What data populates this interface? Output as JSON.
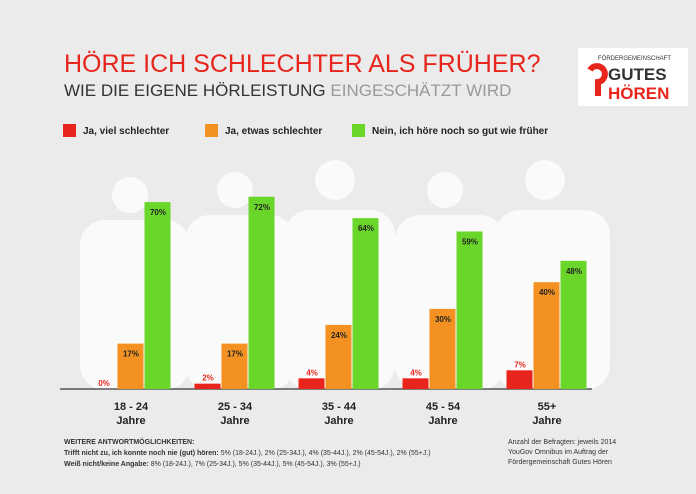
{
  "chart_data": {
    "type": "bar",
    "title": "HÖRE ICH SCHLECHTER ALS FRÜHER?",
    "subtitle_parts": [
      "WIE DIE EIGENE HÖRLEISTUNG",
      "EINGESCHÄTZT WIRD"
    ],
    "categories": [
      "18 - 24 Jahre",
      "25 - 34 Jahre",
      "35 - 44 Jahre",
      "45 - 54 Jahre",
      "55+ Jahre"
    ],
    "series": [
      {
        "name": "Ja, viel schlechter",
        "color": "#e8251c",
        "values": [
          0,
          2,
          4,
          4,
          7
        ],
        "value_labels": [
          "0%",
          "2%",
          "4%",
          "4%",
          "7%"
        ]
      },
      {
        "name": "Ja, etwas schlechter",
        "color": "#f39223",
        "values": [
          17,
          17,
          24,
          30,
          40
        ],
        "value_labels": [
          "17%",
          "17%",
          "24%",
          "30%",
          "40%"
        ]
      },
      {
        "name": "Nein, ich höre noch so gut wie früher",
        "color": "#6ad62a",
        "values": [
          70,
          72,
          64,
          59,
          48
        ],
        "value_labels": [
          "70%",
          "72%",
          "64%",
          "59%",
          "48%"
        ]
      }
    ]
  },
  "logo": {
    "line1": "FÖRDERGEMEINSCHAFT",
    "line2": "GUTES",
    "line3": "HÖREN"
  },
  "footnotes": {
    "heading": "WEITERE ANTWORTMÖGLICHKEITEN:",
    "rows": [
      {
        "label": "Trifft nicht zu, ich konnte noch nie (gut) hören:",
        "text": "5% (18-24J.), 2% (25-34J.), 4% (35-44J.), 2% (45-54J.), 2% (55+J.)"
      },
      {
        "label": "Weiß nicht/keine Angabe:",
        "text": "8% (18-24J.), 7% (25-34J.), 5% (35-44J.), 5% (45-54J.), 3% (55+J.)"
      }
    ],
    "source": [
      "Anzahl der Befragten: jeweils 2014",
      "YouGov Omnibus im Auftrag der",
      "Fördergemeinschaft Gutes Hören"
    ]
  }
}
